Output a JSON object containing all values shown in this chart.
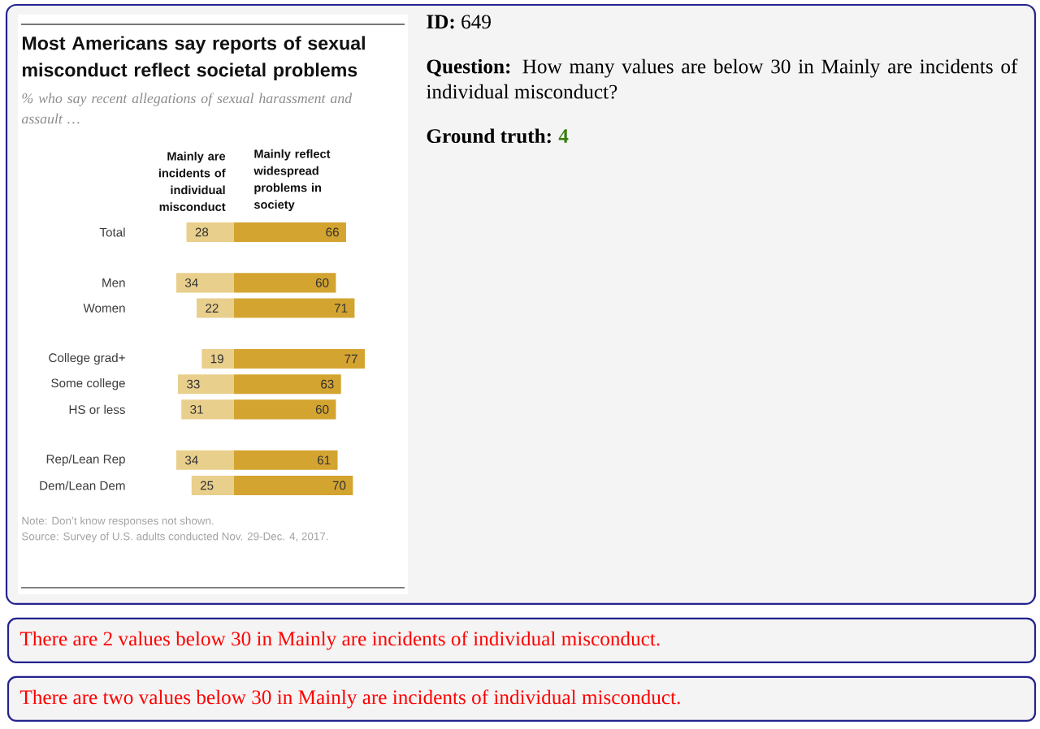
{
  "chart_data": [
    {
      "type": "bar",
      "orientation": "horizontal",
      "title": "Most Americans say reports of sexual misconduct reflect societal problems",
      "subtitle": "% who say recent allegations of sexual harassment and assault …",
      "categories": [
        "Total",
        null,
        "Men",
        "Women",
        null,
        "College grad+",
        "Some college",
        "HS or less",
        null,
        "Rep/Lean Rep",
        "Dem/Lean Dem"
      ],
      "series": [
        {
          "name": "Mainly are incidents of individual misconduct",
          "color": "#e9cf8c",
          "values": [
            28,
            null,
            34,
            22,
            null,
            19,
            33,
            31,
            null,
            34,
            25
          ]
        }
      ],
      "xlim": [
        34,
        0
      ],
      "tick_labels": "y",
      "data_labels": true,
      "annotations": [
        "Note: Don’t know responses not shown.",
        "Source: Survey of U.S. adults conducted Nov. 29-Dec. 4, 2017."
      ]
    },
    {
      "type": "bar",
      "orientation": "horizontal",
      "categories": [
        null,
        null,
        null,
        null,
        null,
        null,
        null,
        null,
        null,
        null,
        null
      ],
      "series": [
        {
          "name": "Mainly reflect widespread problems in society",
          "color": "#d4a430",
          "values": [
            66,
            null,
            60,
            71,
            null,
            77,
            63,
            60,
            null,
            61,
            70
          ]
        }
      ],
      "xlim": [
        0,
        77
      ],
      "data_labels": true
    },
    {
      "type": "other",
      "annotations": [
        "**ID:** 649",
        "**Question:** How many values are below 30 in Mainly are incidents of individual misconduct?",
        "Ground truth:",
        "4",
        "There are 2 values below 30 in Mainly are incidents of individual misconduct.",
        "There are two values below 30 in Mainly are incidents of individual misconduct."
      ]
    }
  ]
}
